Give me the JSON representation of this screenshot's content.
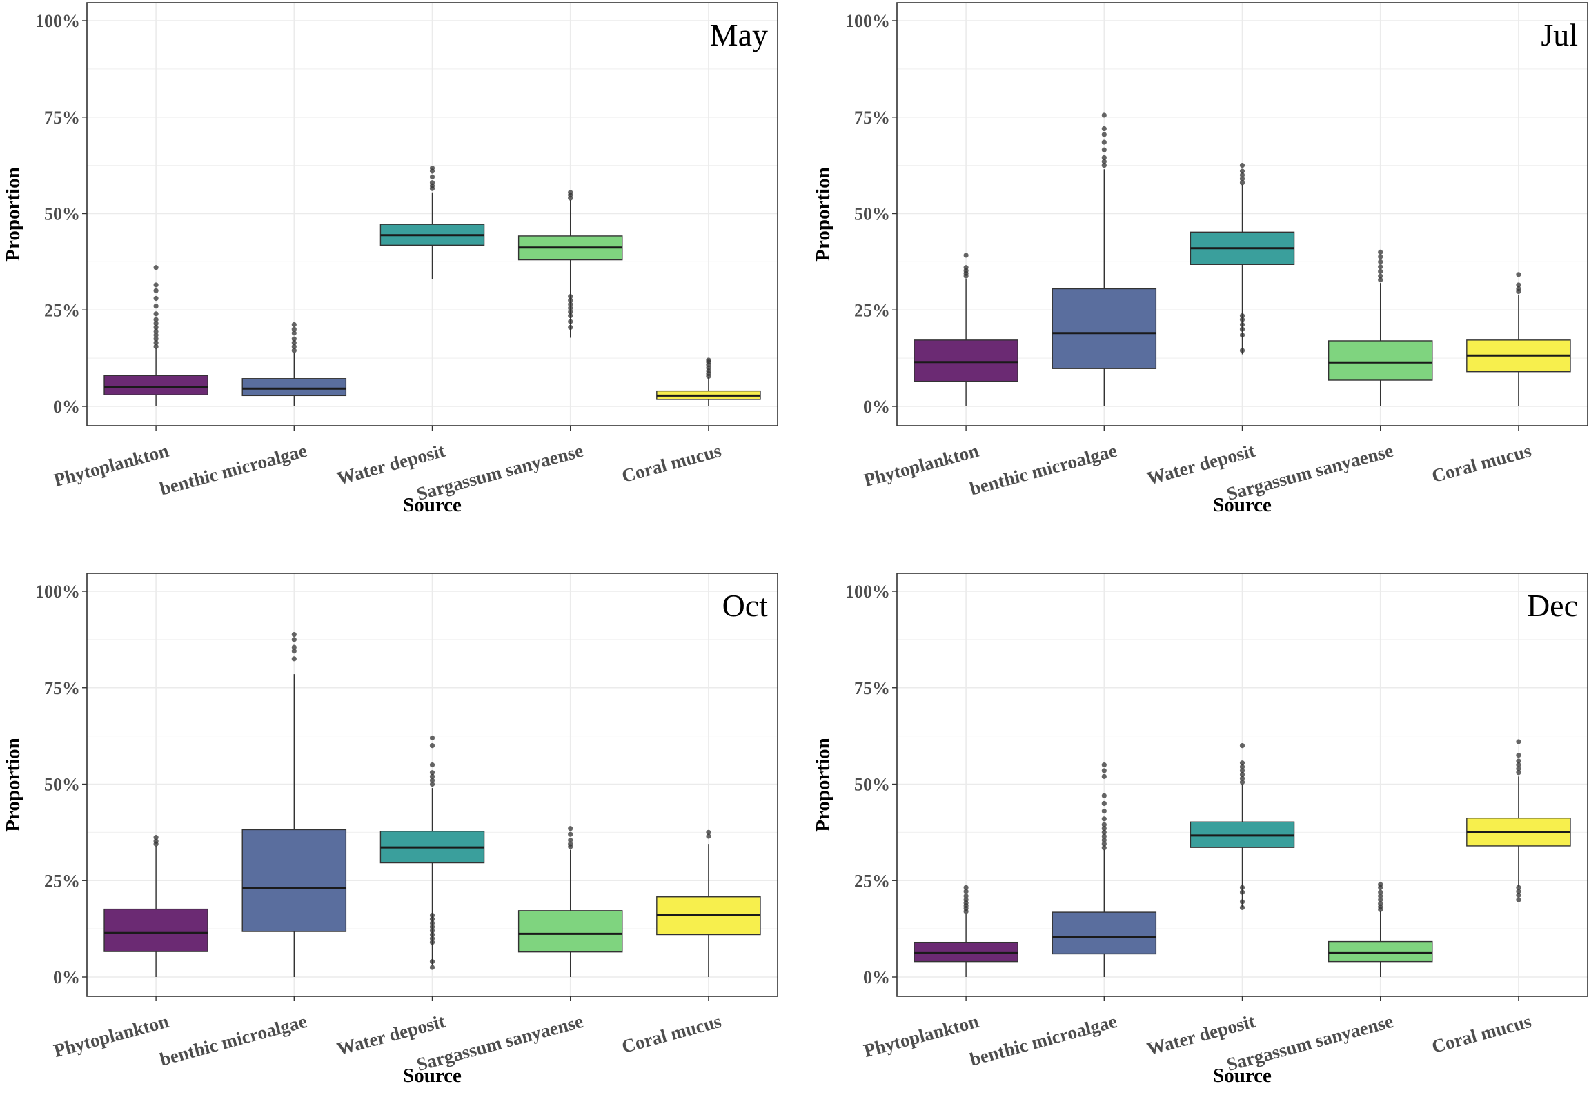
{
  "chart_data": [
    {
      "type": "boxplot",
      "panel_label": "May",
      "xlabel": "Source",
      "ylabel": "Proportion",
      "ylim": [
        0,
        1
      ],
      "yticks": [
        0,
        0.25,
        0.5,
        0.75,
        1
      ],
      "ytick_labels": [
        "0%",
        "25%",
        "50%",
        "75%",
        "100%"
      ],
      "grid": true,
      "categories": [
        "Phytoplankton",
        "benthic microalgae",
        "Water deposit",
        "Sargassum sanyaense",
        "Coral mucus"
      ],
      "colors": [
        "#6b2a73",
        "#5a6e9e",
        "#3a9f9c",
        "#7fd47f",
        "#f7ef4d"
      ],
      "boxes": [
        {
          "min": 0.0,
          "q1": 0.03,
          "median": 0.05,
          "q3": 0.08,
          "max": 0.15,
          "outliers": [
            0.155,
            0.165,
            0.175,
            0.185,
            0.195,
            0.205,
            0.215,
            0.225,
            0.24,
            0.26,
            0.28,
            0.3,
            0.315,
            0.36
          ]
        },
        {
          "min": 0.0,
          "q1": 0.028,
          "median": 0.046,
          "q3": 0.072,
          "max": 0.14,
          "outliers": [
            0.145,
            0.155,
            0.165,
            0.175,
            0.19,
            0.2,
            0.212
          ]
        },
        {
          "min": 0.33,
          "q1": 0.418,
          "median": 0.444,
          "q3": 0.472,
          "max": 0.555,
          "outliers": [
            0.565,
            0.572,
            0.58,
            0.595,
            0.61,
            0.618
          ]
        },
        {
          "min": 0.178,
          "q1": 0.38,
          "median": 0.412,
          "q3": 0.442,
          "max": 0.535,
          "outliers": [
            0.205,
            0.22,
            0.235,
            0.245,
            0.255,
            0.265,
            0.275,
            0.285,
            0.54,
            0.548,
            0.555
          ]
        },
        {
          "min": 0.0,
          "q1": 0.018,
          "median": 0.028,
          "q3": 0.04,
          "max": 0.075,
          "outliers": [
            0.078,
            0.085,
            0.092,
            0.1,
            0.108,
            0.115,
            0.12
          ]
        }
      ]
    },
    {
      "type": "boxplot",
      "panel_label": "Jul",
      "xlabel": "Source",
      "ylabel": "Proportion",
      "ylim": [
        0,
        1
      ],
      "yticks": [
        0,
        0.25,
        0.5,
        0.75,
        1
      ],
      "ytick_labels": [
        "0%",
        "25%",
        "50%",
        "75%",
        "100%"
      ],
      "grid": true,
      "categories": [
        "Phytoplankton",
        "benthic microalgae",
        "Water deposit",
        "Sargassum sanyaense",
        "Coral mucus"
      ],
      "colors": [
        "#6b2a73",
        "#5a6e9e",
        "#3a9f9c",
        "#7fd47f",
        "#f7ef4d"
      ],
      "boxes": [
        {
          "min": 0.0,
          "q1": 0.065,
          "median": 0.115,
          "q3": 0.172,
          "max": 0.33,
          "outliers": [
            0.338,
            0.345,
            0.352,
            0.36,
            0.392
          ]
        },
        {
          "min": 0.0,
          "q1": 0.098,
          "median": 0.19,
          "q3": 0.305,
          "max": 0.615,
          "outliers": [
            0.625,
            0.635,
            0.645,
            0.665,
            0.685,
            0.705,
            0.72,
            0.755
          ]
        },
        {
          "min": 0.135,
          "q1": 0.368,
          "median": 0.41,
          "q3": 0.452,
          "max": 0.575,
          "outliers": [
            0.145,
            0.185,
            0.2,
            0.212,
            0.225,
            0.235,
            0.58,
            0.59,
            0.6,
            0.61,
            0.625
          ]
        },
        {
          "min": 0.0,
          "q1": 0.068,
          "median": 0.114,
          "q3": 0.17,
          "max": 0.32,
          "outliers": [
            0.328,
            0.338,
            0.35,
            0.362,
            0.375,
            0.388,
            0.4
          ]
        },
        {
          "min": 0.0,
          "q1": 0.09,
          "median": 0.132,
          "q3": 0.172,
          "max": 0.29,
          "outliers": [
            0.298,
            0.305,
            0.315,
            0.342
          ]
        }
      ]
    },
    {
      "type": "boxplot",
      "panel_label": "Oct",
      "xlabel": "Source",
      "ylabel": "Proportion",
      "ylim": [
        0,
        1
      ],
      "yticks": [
        0,
        0.25,
        0.5,
        0.75,
        1
      ],
      "ytick_labels": [
        "0%",
        "25%",
        "50%",
        "75%",
        "100%"
      ],
      "grid": true,
      "categories": [
        "Phytoplankton",
        "benthic microalgae",
        "Water deposit",
        "Sargassum sanyaense",
        "Coral mucus"
      ],
      "colors": [
        "#6b2a73",
        "#5a6e9e",
        "#3a9f9c",
        "#7fd47f",
        "#f7ef4d"
      ],
      "boxes": [
        {
          "min": 0.0,
          "q1": 0.066,
          "median": 0.114,
          "q3": 0.176,
          "max": 0.34,
          "outliers": [
            0.345,
            0.352,
            0.362
          ]
        },
        {
          "min": 0.0,
          "q1": 0.118,
          "median": 0.23,
          "q3": 0.382,
          "max": 0.785,
          "outliers": [
            0.825,
            0.845,
            0.855,
            0.875,
            0.888
          ]
        },
        {
          "min": 0.03,
          "q1": 0.296,
          "median": 0.336,
          "q3": 0.378,
          "max": 0.49,
          "outliers": [
            0.025,
            0.04,
            0.09,
            0.1,
            0.11,
            0.12,
            0.13,
            0.14,
            0.15,
            0.16,
            0.5,
            0.51,
            0.52,
            0.53,
            0.55,
            0.6,
            0.62
          ]
        },
        {
          "min": 0.0,
          "q1": 0.065,
          "median": 0.112,
          "q3": 0.172,
          "max": 0.33,
          "outliers": [
            0.338,
            0.345,
            0.355,
            0.37,
            0.385
          ]
        },
        {
          "min": 0.0,
          "q1": 0.11,
          "median": 0.16,
          "q3": 0.208,
          "max": 0.345,
          "outliers": [
            0.365,
            0.375
          ]
        }
      ]
    },
    {
      "type": "boxplot",
      "panel_label": "Dec",
      "xlabel": "Source",
      "ylabel": "Proportion",
      "ylim": [
        0,
        1
      ],
      "yticks": [
        0,
        0.25,
        0.5,
        0.75,
        1
      ],
      "ytick_labels": [
        "0%",
        "25%",
        "50%",
        "75%",
        "100%"
      ],
      "grid": true,
      "categories": [
        "Phytoplankton",
        "benthic microalgae",
        "Water deposit",
        "Sargassum sanyaense",
        "Coral mucus"
      ],
      "colors": [
        "#6b2a73",
        "#5a6e9e",
        "#3a9f9c",
        "#7fd47f",
        "#f7ef4d"
      ],
      "boxes": [
        {
          "min": 0.0,
          "q1": 0.04,
          "median": 0.062,
          "q3": 0.09,
          "max": 0.165,
          "outliers": [
            0.17,
            0.178,
            0.185,
            0.192,
            0.2,
            0.21,
            0.222,
            0.232
          ]
        },
        {
          "min": 0.0,
          "q1": 0.06,
          "median": 0.103,
          "q3": 0.168,
          "max": 0.33,
          "outliers": [
            0.335,
            0.345,
            0.355,
            0.365,
            0.375,
            0.385,
            0.395,
            0.41,
            0.43,
            0.45,
            0.47,
            0.52,
            0.535,
            0.55
          ]
        },
        {
          "min": 0.18,
          "q1": 0.336,
          "median": 0.367,
          "q3": 0.402,
          "max": 0.5,
          "outliers": [
            0.18,
            0.195,
            0.22,
            0.232,
            0.505,
            0.515,
            0.525,
            0.535,
            0.545,
            0.555,
            0.6
          ]
        },
        {
          "min": 0.0,
          "q1": 0.04,
          "median": 0.062,
          "q3": 0.092,
          "max": 0.17,
          "outliers": [
            0.175,
            0.182,
            0.19,
            0.2,
            0.21,
            0.22,
            0.232,
            0.24
          ]
        },
        {
          "min": 0.235,
          "q1": 0.34,
          "median": 0.375,
          "q3": 0.412,
          "max": 0.52,
          "outliers": [
            0.2,
            0.212,
            0.222,
            0.232,
            0.53,
            0.54,
            0.55,
            0.56,
            0.575,
            0.61
          ]
        }
      ]
    }
  ]
}
